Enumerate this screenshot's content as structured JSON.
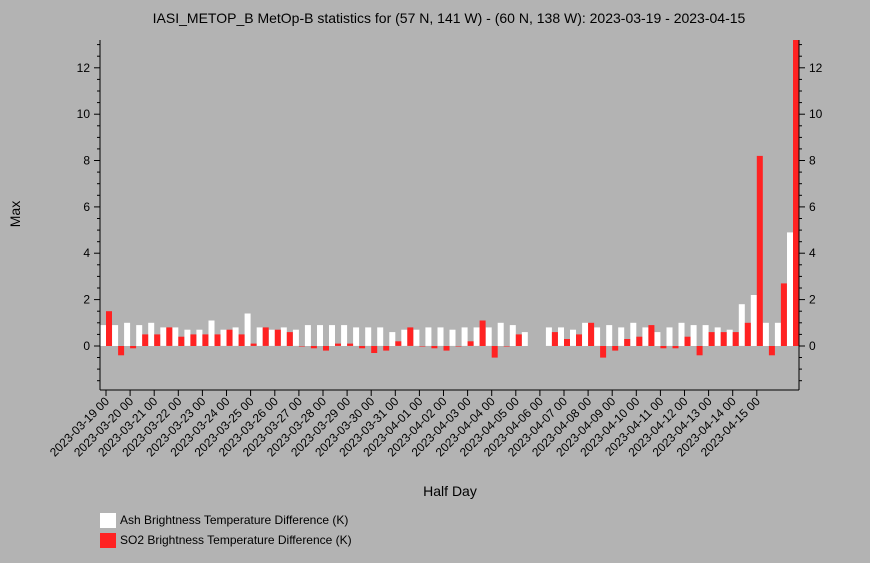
{
  "chart_data": {
    "type": "bar",
    "title": "IASI_METOP_B MetOp-B statistics for (57 N, 141 W) - (60 N, 138 W): 2023-03-19 - 2023-04-15",
    "xlabel": "Half Day",
    "ylabel": "Max",
    "ylim": [
      -1.9,
      13.2
    ],
    "yticks": [
      0,
      2,
      4,
      6,
      8,
      10,
      12
    ],
    "grid": false,
    "legend_position": "bottom-left",
    "x_tick_labels": [
      "2023-03-19 00",
      "2023-03-20 00",
      "2023-03-21 00",
      "2023-03-22 00",
      "2023-03-23 00",
      "2023-03-24 00",
      "2023-03-25 00",
      "2023-03-26 00",
      "2023-03-27 00",
      "2023-03-28 00",
      "2023-03-29 00",
      "2023-03-30 00",
      "2023-03-31 00",
      "2023-04-01 00",
      "2023-04-02 00",
      "2023-04-03 00",
      "2023-04-04 00",
      "2023-04-05 00",
      "2023-04-06 00",
      "2023-04-07 00",
      "2023-04-08 00",
      "2023-04-09 00",
      "2023-04-10 00",
      "2023-04-11 00",
      "2023-04-12 00",
      "2023-04-13 00",
      "2023-04-14 00",
      "2023-04-15 00"
    ],
    "series": [
      {
        "name": "Ash Brightness Temperature Difference (K)",
        "color": "#ffffff",
        "values": [
          0.9,
          0.9,
          1.0,
          0.9,
          1.0,
          0.8,
          0.8,
          0.7,
          0.7,
          1.1,
          0.7,
          0.8,
          1.4,
          0.8,
          0.7,
          0.8,
          0.7,
          0.9,
          0.9,
          0.9,
          0.9,
          0.8,
          0.8,
          0.8,
          0.6,
          0.7,
          0.7,
          0.8,
          0.8,
          0.7,
          0.8,
          0.8,
          0.8,
          1.0,
          0.9,
          0.6,
          null,
          0.8,
          0.8,
          0.7,
          1.0,
          0.8,
          0.9,
          0.8,
          1.0,
          0.8,
          0.6,
          0.8,
          1.0,
          0.9,
          0.9,
          0.8,
          0.7,
          1.8,
          2.2,
          1.0,
          1.0,
          4.9
        ]
      },
      {
        "name": "SO2 Brightness Temperature Difference (K)",
        "color": "#ff2222",
        "values": [
          1.5,
          -0.4,
          -0.1,
          0.5,
          0.5,
          0.8,
          0.4,
          0.5,
          0.5,
          0.5,
          0.7,
          0.5,
          0.1,
          0.8,
          0.7,
          0.6,
          0.0,
          -0.1,
          -0.2,
          0.1,
          0.1,
          -0.1,
          -0.3,
          -0.2,
          0.2,
          0.8,
          0.0,
          -0.1,
          -0.2,
          0.0,
          0.2,
          1.1,
          -0.5,
          0.0,
          0.5,
          null,
          null,
          0.6,
          0.3,
          0.5,
          1.0,
          -0.5,
          -0.2,
          0.3,
          0.4,
          0.9,
          -0.1,
          -0.1,
          0.4,
          -0.4,
          0.6,
          0.6,
          0.6,
          1.0,
          8.2,
          -0.4,
          2.7,
          13.2
        ]
      }
    ]
  }
}
